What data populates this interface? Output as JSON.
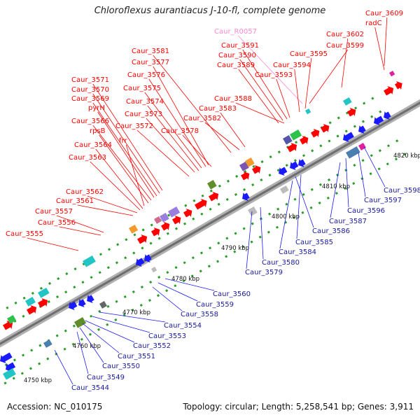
{
  "title": "Chloroflexus aurantiacus J-10-fl, complete genome",
  "footer": {
    "accession": "Accession: NC_010175",
    "summary": "Topology: circular; Length: 5,258,541 bp; Genes: 3,911"
  },
  "colors": {
    "forward": "#ff0000",
    "reverse": "#1a1aff",
    "rna_label": "#ff8ad0",
    "axis": "#888888",
    "tick": "#2a9d2a"
  },
  "scale_labels": [
    "4750 kbp",
    "4760 kbp",
    "4770 kbp",
    "4780 kbp",
    "4790 kbp",
    "4800 kbp",
    "4810 kbp",
    "4820 kbp"
  ],
  "top_labels": [
    {
      "text": "Caur_3609",
      "color": "forward"
    },
    {
      "text": "radC",
      "color": "forward"
    },
    {
      "text": "Caur_R0057",
      "color": "rna"
    },
    {
      "text": "Caur_3602",
      "color": "forward"
    },
    {
      "text": "Caur_3591",
      "color": "forward"
    },
    {
      "text": "Caur_3599",
      "color": "forward"
    },
    {
      "text": "Caur_3590",
      "color": "forward"
    },
    {
      "text": "Caur_3595",
      "color": "forward"
    },
    {
      "text": "Caur_3589",
      "color": "forward"
    },
    {
      "text": "Caur_3594",
      "color": "forward"
    },
    {
      "text": "Caur_3593",
      "color": "forward"
    },
    {
      "text": "Caur_3581",
      "color": "forward"
    },
    {
      "text": "Caur_3577",
      "color": "forward"
    },
    {
      "text": "Caur_3576",
      "color": "forward"
    },
    {
      "text": "Caur_3571",
      "color": "forward"
    },
    {
      "text": "Caur_3570",
      "color": "forward"
    },
    {
      "text": "Caur_3575",
      "color": "forward"
    },
    {
      "text": "Caur_3569",
      "color": "forward"
    },
    {
      "text": "Caur_3574",
      "color": "forward"
    },
    {
      "text": "Caur_3588",
      "color": "forward"
    },
    {
      "text": "pyrH",
      "color": "forward"
    },
    {
      "text": "Caur_3583",
      "color": "forward"
    },
    {
      "text": "Caur_3573",
      "color": "forward"
    },
    {
      "text": "Caur_3582",
      "color": "forward"
    },
    {
      "text": "Caur_3566",
      "color": "forward"
    },
    {
      "text": "Caur_3572",
      "color": "forward"
    },
    {
      "text": "rpsB",
      "color": "forward"
    },
    {
      "text": "Caur_3578",
      "color": "forward"
    },
    {
      "text": "frr",
      "color": "forward"
    },
    {
      "text": "Caur_3564",
      "color": "forward"
    },
    {
      "text": "Caur_3563",
      "color": "forward"
    },
    {
      "text": "Caur_3562",
      "color": "forward"
    },
    {
      "text": "Caur_3561",
      "color": "forward"
    },
    {
      "text": "Caur_3557",
      "color": "forward"
    },
    {
      "text": "Caur_3556",
      "color": "forward"
    },
    {
      "text": "Caur_3555",
      "color": "forward"
    }
  ],
  "bottom_labels": [
    {
      "text": "Caur_3598"
    },
    {
      "text": "Caur_3597"
    },
    {
      "text": "Caur_3596"
    },
    {
      "text": "Caur_3587"
    },
    {
      "text": "Caur_3586"
    },
    {
      "text": "Caur_3585"
    },
    {
      "text": "Caur_3584"
    },
    {
      "text": "Caur_3580"
    },
    {
      "text": "Caur_3579"
    },
    {
      "text": "Caur_3560"
    },
    {
      "text": "Caur_3559"
    },
    {
      "text": "Caur_3558"
    },
    {
      "text": "Caur_3554"
    },
    {
      "text": "Caur_3553"
    },
    {
      "text": "Caur_3552"
    },
    {
      "text": "Caur_3551"
    },
    {
      "text": "Caur_3550"
    },
    {
      "text": "Caur_3549"
    },
    {
      "text": "Caur_3544"
    }
  ]
}
